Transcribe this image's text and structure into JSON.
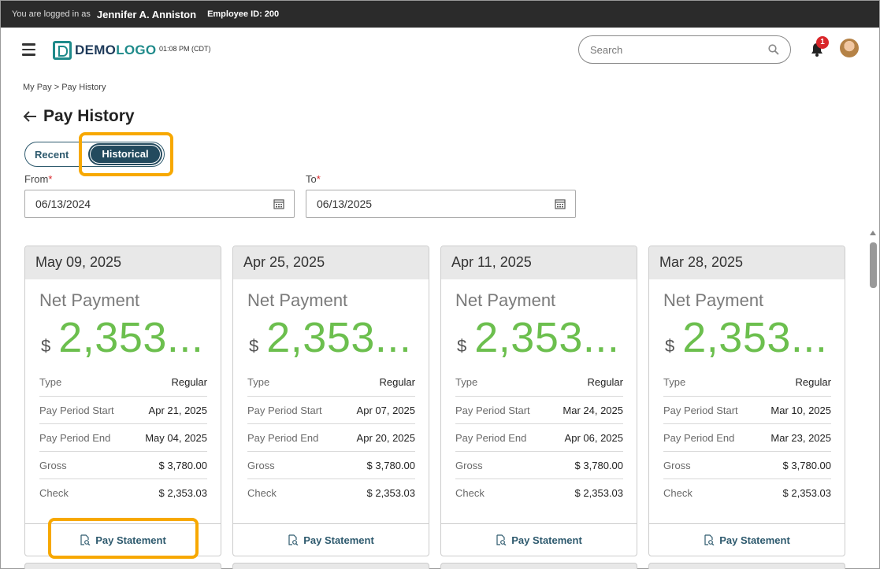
{
  "topbar": {
    "logged_label": "You are logged in as",
    "user_name": "Jennifer A. Anniston",
    "employee_id": "Employee ID: 200"
  },
  "header": {
    "logo_demo": "DEMO",
    "logo_logo": "LOGO",
    "time": "01:08 PM (CDT)",
    "search_placeholder": "Search",
    "notification_count": "1"
  },
  "breadcrumb": "My Pay  >  Pay History",
  "page_title": "Pay History",
  "toggle": {
    "recent": "Recent",
    "historical": "Historical"
  },
  "filters": {
    "from_label": "From",
    "to_label": "To",
    "required": "*",
    "from_value": "06/13/2024",
    "to_value": "06/13/2025"
  },
  "cards": [
    {
      "date": "May 09, 2025",
      "net_label": "Net Payment",
      "currency": "$",
      "amount": "2,353...",
      "rows": [
        {
          "k": "Type",
          "v": "Regular"
        },
        {
          "k": "Pay Period Start",
          "v": "Apr 21, 2025"
        },
        {
          "k": "Pay Period End",
          "v": "May 04, 2025"
        },
        {
          "k": "Gross",
          "v": "$ 3,780.00"
        },
        {
          "k": "Check",
          "v": "$ 2,353.03"
        }
      ],
      "action": "Pay Statement"
    },
    {
      "date": "Apr 25, 2025",
      "net_label": "Net Payment",
      "currency": "$",
      "amount": "2,353...",
      "rows": [
        {
          "k": "Type",
          "v": "Regular"
        },
        {
          "k": "Pay Period Start",
          "v": "Apr 07, 2025"
        },
        {
          "k": "Pay Period End",
          "v": "Apr 20, 2025"
        },
        {
          "k": "Gross",
          "v": "$ 3,780.00"
        },
        {
          "k": "Check",
          "v": "$ 2,353.03"
        }
      ],
      "action": "Pay Statement"
    },
    {
      "date": "Apr 11, 2025",
      "net_label": "Net Payment",
      "currency": "$",
      "amount": "2,353...",
      "rows": [
        {
          "k": "Type",
          "v": "Regular"
        },
        {
          "k": "Pay Period Start",
          "v": "Mar 24, 2025"
        },
        {
          "k": "Pay Period End",
          "v": "Apr 06, 2025"
        },
        {
          "k": "Gross",
          "v": "$ 3,780.00"
        },
        {
          "k": "Check",
          "v": "$ 2,353.03"
        }
      ],
      "action": "Pay Statement"
    },
    {
      "date": "Mar 28, 2025",
      "net_label": "Net Payment",
      "currency": "$",
      "amount": "2,353...",
      "rows": [
        {
          "k": "Type",
          "v": "Regular"
        },
        {
          "k": "Pay Period Start",
          "v": "Mar 10, 2025"
        },
        {
          "k": "Pay Period End",
          "v": "Mar 23, 2025"
        },
        {
          "k": "Gross",
          "v": "$ 3,780.00"
        },
        {
          "k": "Check",
          "v": "$ 2,353.03"
        }
      ],
      "action": "Pay Statement"
    }
  ],
  "colors": {
    "accent": "#2e5a6e",
    "amount_green": "#6cbf4e",
    "highlight": "#f7a800",
    "badge_red": "#d9262a"
  },
  "icons": [
    "menu-icon",
    "search-icon",
    "bell-icon",
    "back-arrow-icon",
    "calendar-icon",
    "document-search-icon"
  ]
}
